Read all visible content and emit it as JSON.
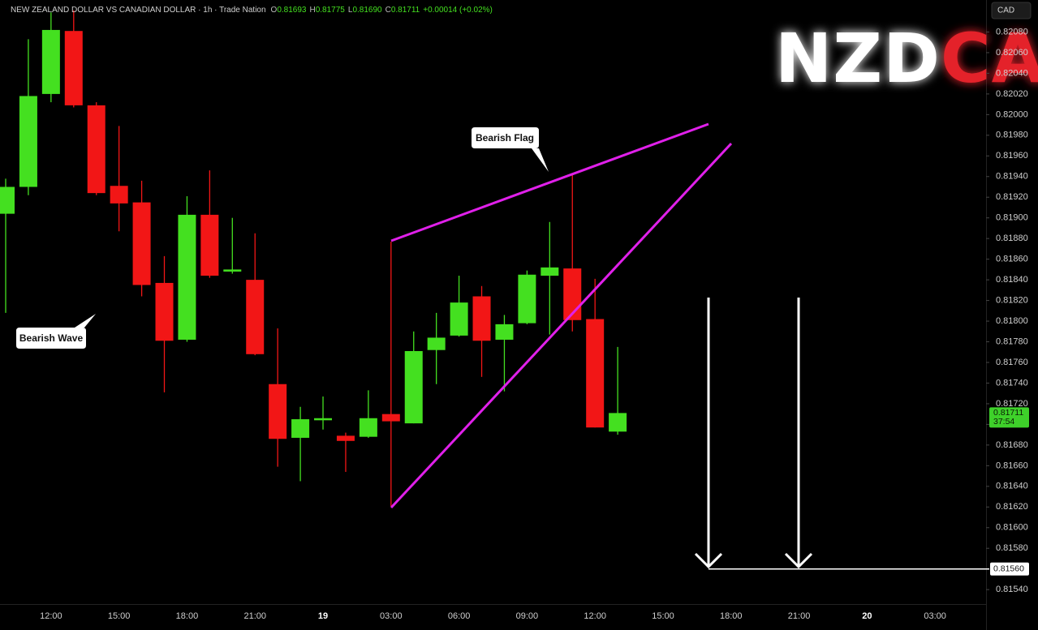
{
  "chart_data": {
    "type": "candlestick",
    "header": {
      "symbol": "NEW ZEALAND DOLLAR VS CANADIAN DOLLAR · 1h · Trade Nation",
      "ohlc": [
        {
          "key": "O",
          "value": "0.81693"
        },
        {
          "key": "H",
          "value": "0.81775"
        },
        {
          "key": "L",
          "value": "0.81690"
        },
        {
          "key": "C",
          "value": "0.81711"
        }
      ],
      "change": "+0.00014 (+0.02%)"
    },
    "logo": {
      "base": "NZD",
      "quote": "CAD"
    },
    "currency_button": "CAD",
    "annotations": [
      "Bearish Wave",
      "Bearish Flag"
    ],
    "categories": [
      null,
      null,
      "12:00",
      null,
      null,
      "15:00",
      null,
      null,
      "18:00",
      null,
      null,
      "21:00",
      null,
      null,
      "19",
      null,
      null,
      "03:00",
      null,
      null,
      "06:00",
      null,
      null,
      "09:00",
      null,
      null,
      "12:00",
      null,
      null,
      "15:00",
      null,
      null,
      "18:00",
      null,
      null,
      "21:00",
      null,
      null,
      "20",
      null,
      null,
      "03:00",
      null,
      null
    ],
    "bold_categories": [
      "19",
      "20"
    ],
    "open": [
      0.81904,
      0.8193,
      0.8202,
      0.82081,
      0.82009,
      0.81931,
      0.81915,
      0.81837,
      0.81782,
      0.81903,
      0.81848,
      0.8184,
      0.81739,
      0.81687,
      0.81704,
      0.81689,
      0.81688,
      0.8171,
      0.81701,
      0.81772,
      0.81786,
      0.81824,
      0.81782,
      0.81798,
      0.81844,
      0.81851,
      0.81802,
      0.81693,
      null,
      null,
      null,
      null,
      null,
      null,
      null,
      null,
      null,
      null,
      null,
      null,
      null,
      null,
      null,
      null
    ],
    "high": [
      0.81938,
      0.82073,
      0.82099,
      0.82101,
      0.82012,
      0.81989,
      0.81936,
      0.81863,
      0.81921,
      0.81946,
      0.819,
      0.81885,
      0.81793,
      0.81717,
      0.81727,
      0.81692,
      0.81733,
      0.81877,
      0.8179,
      0.81808,
      0.81844,
      0.81834,
      0.81806,
      0.81849,
      0.81896,
      0.81942,
      0.81841,
      0.81775,
      null,
      null,
      null,
      null,
      null,
      null,
      null,
      null,
      null,
      null,
      null,
      null,
      null,
      null,
      null,
      null
    ],
    "low": [
      0.81808,
      0.81922,
      0.82012,
      0.82007,
      0.81922,
      0.81887,
      0.81824,
      0.81731,
      0.8178,
      0.81842,
      0.81846,
      0.81767,
      0.81659,
      0.81645,
      0.81695,
      0.81654,
      0.81687,
      0.81621,
      0.81701,
      0.81739,
      0.81785,
      0.81746,
      0.81732,
      0.81797,
      0.81787,
      0.8179,
      0.81697,
      0.8169,
      null,
      null,
      null,
      null,
      null,
      null,
      null,
      null,
      null,
      null,
      null,
      null,
      null,
      null,
      null,
      null
    ],
    "close": [
      0.8193,
      0.82018,
      0.82082,
      0.82009,
      0.81924,
      0.81914,
      0.81835,
      0.81781,
      0.81903,
      0.81844,
      0.8185,
      0.81768,
      0.81686,
      0.81705,
      0.81706,
      0.81684,
      0.81706,
      0.81703,
      0.81771,
      0.81784,
      0.81818,
      0.81781,
      0.81797,
      0.81845,
      0.81852,
      0.81801,
      0.81697,
      0.81711,
      null,
      null,
      null,
      null,
      null,
      null,
      null,
      null,
      null,
      null,
      null,
      null,
      null,
      null,
      null,
      null
    ],
    "up_color": "#44e020",
    "down_color": "#f21616",
    "last_price": {
      "value": 0.81711,
      "label": "0.81711"
    },
    "countdown": "37:54",
    "target": {
      "value": 0.8156,
      "label": "0.81560"
    },
    "ylim": [
      0.81526,
      0.82111
    ],
    "yticks": [
      {
        "value": 0.8208,
        "label": "0.82080"
      },
      {
        "value": 0.8206,
        "label": "0.82060"
      },
      {
        "value": 0.8204,
        "label": "0.82040"
      },
      {
        "value": 0.8202,
        "label": "0.82020"
      },
      {
        "value": 0.82,
        "label": "0.82000"
      },
      {
        "value": 0.8198,
        "label": "0.81980"
      },
      {
        "value": 0.8196,
        "label": "0.81960"
      },
      {
        "value": 0.8194,
        "label": "0.81940"
      },
      {
        "value": 0.8192,
        "label": "0.81920"
      },
      {
        "value": 0.819,
        "label": "0.81900"
      },
      {
        "value": 0.8188,
        "label": "0.81880"
      },
      {
        "value": 0.8186,
        "label": "0.81860"
      },
      {
        "value": 0.8184,
        "label": "0.81840"
      },
      {
        "value": 0.8182,
        "label": "0.81820"
      },
      {
        "value": 0.818,
        "label": "0.81800"
      },
      {
        "value": 0.8178,
        "label": "0.81780"
      },
      {
        "value": 0.8176,
        "label": "0.81760"
      },
      {
        "value": 0.8174,
        "label": "0.81740"
      },
      {
        "value": 0.8172,
        "label": "0.81720"
      },
      {
        "value": 0.817,
        "label": "0.81700"
      },
      {
        "value": 0.8168,
        "label": "0.81680"
      },
      {
        "value": 0.8166,
        "label": "0.81660"
      },
      {
        "value": 0.8164,
        "label": "0.81640"
      },
      {
        "value": 0.8162,
        "label": "0.81620"
      },
      {
        "value": 0.816,
        "label": "0.81600"
      },
      {
        "value": 0.8158,
        "label": "0.81580"
      },
      {
        "value": 0.8156,
        "label": "0.81560"
      },
      {
        "value": 0.8154,
        "label": "0.81540"
      }
    ],
    "grid": false
  }
}
